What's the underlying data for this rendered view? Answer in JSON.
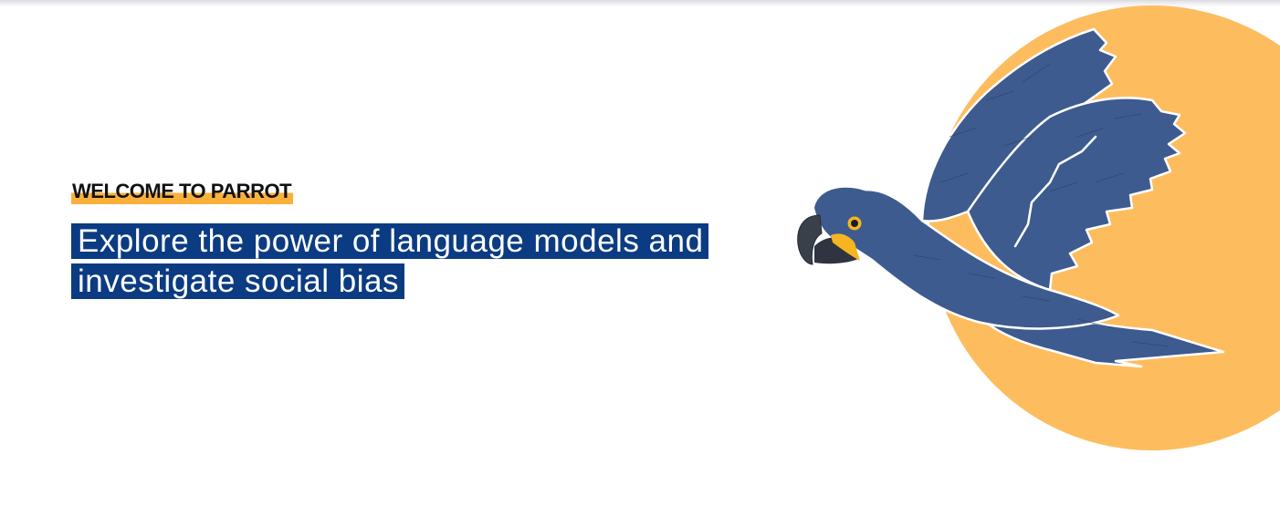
{
  "hero": {
    "eyebrow": "WELCOME TO PARROT",
    "headline": "Explore the power of language models and investigate social bias"
  },
  "illustration": {
    "subject": "parrot-icon",
    "background": "sun-circle-icon"
  },
  "colors": {
    "eyebrow_highlight": "#fbb03b",
    "headline_background": "#0b3b82",
    "parrot_body": "#3e5b8f",
    "sun": "#fdbd5f",
    "beak_accent": "#f4b521"
  }
}
